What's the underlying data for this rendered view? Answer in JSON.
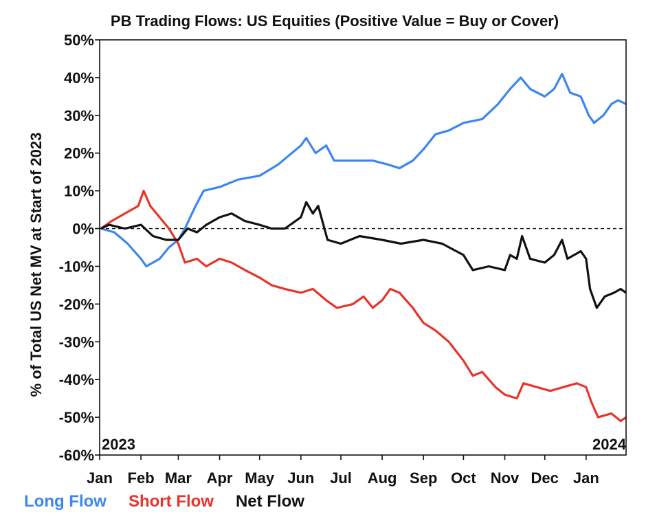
{
  "chart_data": {
    "type": "line",
    "title": "PB Trading Flows: US Equities (Positive Value = Buy or Cover)",
    "ylabel": "% of Total US Net MV at Start of 2023",
    "xlabel": "",
    "ylim": [
      -60,
      50
    ],
    "y_ticks": [
      "50%",
      "40%",
      "30%",
      "20%",
      "10%",
      "0%",
      "-10%",
      "-20%",
      "-30%",
      "-40%",
      "-50%",
      "-60%"
    ],
    "y_tick_values": [
      50,
      40,
      30,
      20,
      10,
      0,
      -10,
      -20,
      -30,
      -40,
      -50,
      -60
    ],
    "x_ticks": [
      "Jan",
      "Feb",
      "Mar",
      "Apr",
      "May",
      "Jun",
      "Jul",
      "Aug",
      "Sep",
      "Oct",
      "Nov",
      "Dec",
      "Jan"
    ],
    "x_range": [
      "2023-01-01",
      "2024-01-31"
    ],
    "year_labels": {
      "start": "2023",
      "end": "2024"
    },
    "zero_line": "dashed",
    "legend_position": "bottom-left",
    "series": [
      {
        "name": "Long Flow",
        "color": "#3b86f0",
        "points": [
          [
            "2023-01-02",
            0
          ],
          [
            "2023-01-12",
            -1
          ],
          [
            "2023-01-22",
            -4
          ],
          [
            "2023-02-01",
            -8
          ],
          [
            "2023-02-05",
            -10
          ],
          [
            "2023-02-15",
            -8
          ],
          [
            "2023-02-22",
            -5
          ],
          [
            "2023-03-01",
            -3
          ],
          [
            "2023-03-06",
            0
          ],
          [
            "2023-03-14",
            6
          ],
          [
            "2023-03-20",
            10
          ],
          [
            "2023-04-01",
            11
          ],
          [
            "2023-04-15",
            13
          ],
          [
            "2023-05-01",
            14
          ],
          [
            "2023-05-15",
            17
          ],
          [
            "2023-06-01",
            22
          ],
          [
            "2023-06-05",
            24
          ],
          [
            "2023-06-12",
            20
          ],
          [
            "2023-06-20",
            22
          ],
          [
            "2023-06-26",
            18
          ],
          [
            "2023-07-10",
            18
          ],
          [
            "2023-07-25",
            18
          ],
          [
            "2023-08-05",
            17
          ],
          [
            "2023-08-14",
            16
          ],
          [
            "2023-08-24",
            18
          ],
          [
            "2023-09-01",
            21
          ],
          [
            "2023-09-10",
            25
          ],
          [
            "2023-09-20",
            26
          ],
          [
            "2023-10-01",
            28
          ],
          [
            "2023-10-15",
            29
          ],
          [
            "2023-10-27",
            33
          ],
          [
            "2023-11-05",
            37
          ],
          [
            "2023-11-13",
            40
          ],
          [
            "2023-11-20",
            37
          ],
          [
            "2023-12-01",
            35
          ],
          [
            "2023-12-08",
            37
          ],
          [
            "2023-12-14",
            41
          ],
          [
            "2023-12-20",
            36
          ],
          [
            "2023-12-28",
            35
          ],
          [
            "2024-01-03",
            30
          ],
          [
            "2024-01-07",
            28
          ],
          [
            "2024-01-14",
            30
          ],
          [
            "2024-01-20",
            33
          ],
          [
            "2024-01-25",
            34
          ],
          [
            "2024-01-31",
            33
          ]
        ]
      },
      {
        "name": "Short Flow",
        "color": "#e8342a",
        "points": [
          [
            "2023-01-02",
            0
          ],
          [
            "2023-01-10",
            2
          ],
          [
            "2023-01-20",
            4
          ],
          [
            "2023-01-30",
            6
          ],
          [
            "2023-02-03",
            10
          ],
          [
            "2023-02-08",
            6
          ],
          [
            "2023-02-15",
            3
          ],
          [
            "2023-02-22",
            0
          ],
          [
            "2023-03-01",
            -4
          ],
          [
            "2023-03-06",
            -9
          ],
          [
            "2023-03-15",
            -8
          ],
          [
            "2023-03-22",
            -10
          ],
          [
            "2023-04-01",
            -8
          ],
          [
            "2023-04-10",
            -9
          ],
          [
            "2023-04-20",
            -11
          ],
          [
            "2023-05-01",
            -13
          ],
          [
            "2023-05-10",
            -15
          ],
          [
            "2023-05-20",
            -16
          ],
          [
            "2023-06-01",
            -17
          ],
          [
            "2023-06-10",
            -16
          ],
          [
            "2023-06-20",
            -19
          ],
          [
            "2023-06-28",
            -21
          ],
          [
            "2023-07-10",
            -20
          ],
          [
            "2023-07-18",
            -18
          ],
          [
            "2023-07-25",
            -21
          ],
          [
            "2023-08-01",
            -19
          ],
          [
            "2023-08-07",
            -16
          ],
          [
            "2023-08-14",
            -17
          ],
          [
            "2023-08-24",
            -21
          ],
          [
            "2023-09-01",
            -25
          ],
          [
            "2023-09-10",
            -27
          ],
          [
            "2023-09-20",
            -30
          ],
          [
            "2023-10-01",
            -35
          ],
          [
            "2023-10-08",
            -39
          ],
          [
            "2023-10-15",
            -38
          ],
          [
            "2023-10-25",
            -42
          ],
          [
            "2023-11-01",
            -44
          ],
          [
            "2023-11-10",
            -45
          ],
          [
            "2023-11-15",
            -41
          ],
          [
            "2023-11-25",
            -42
          ],
          [
            "2023-12-05",
            -43
          ],
          [
            "2023-12-15",
            -42
          ],
          [
            "2023-12-25",
            -41
          ],
          [
            "2024-01-01",
            -42
          ],
          [
            "2024-01-05",
            -46
          ],
          [
            "2024-01-10",
            -50
          ],
          [
            "2024-01-20",
            -49
          ],
          [
            "2024-01-27",
            -51
          ],
          [
            "2024-01-31",
            -50
          ]
        ]
      },
      {
        "name": "Net Flow",
        "color": "#111111",
        "points": [
          [
            "2023-01-02",
            0
          ],
          [
            "2023-01-08",
            1
          ],
          [
            "2023-01-20",
            0
          ],
          [
            "2023-02-01",
            1
          ],
          [
            "2023-02-10",
            -2
          ],
          [
            "2023-02-20",
            -3
          ],
          [
            "2023-03-01",
            -3
          ],
          [
            "2023-03-08",
            0
          ],
          [
            "2023-03-15",
            -1
          ],
          [
            "2023-03-22",
            1
          ],
          [
            "2023-04-01",
            3
          ],
          [
            "2023-04-10",
            4
          ],
          [
            "2023-04-20",
            2
          ],
          [
            "2023-05-01",
            1
          ],
          [
            "2023-05-10",
            0
          ],
          [
            "2023-05-20",
            0
          ],
          [
            "2023-06-01",
            3
          ],
          [
            "2023-06-05",
            7
          ],
          [
            "2023-06-10",
            4
          ],
          [
            "2023-06-14",
            6
          ],
          [
            "2023-06-21",
            -3
          ],
          [
            "2023-07-01",
            -4
          ],
          [
            "2023-07-15",
            -2
          ],
          [
            "2023-08-01",
            -3
          ],
          [
            "2023-08-15",
            -4
          ],
          [
            "2023-09-01",
            -3
          ],
          [
            "2023-09-15",
            -4
          ],
          [
            "2023-10-01",
            -7
          ],
          [
            "2023-10-08",
            -11
          ],
          [
            "2023-10-20",
            -10
          ],
          [
            "2023-11-01",
            -11
          ],
          [
            "2023-11-05",
            -7
          ],
          [
            "2023-11-10",
            -8
          ],
          [
            "2023-11-14",
            -2
          ],
          [
            "2023-11-20",
            -8
          ],
          [
            "2023-12-01",
            -9
          ],
          [
            "2023-12-08",
            -7
          ],
          [
            "2023-12-14",
            -3
          ],
          [
            "2023-12-18",
            -8
          ],
          [
            "2023-12-28",
            -6
          ],
          [
            "2024-01-01",
            -8
          ],
          [
            "2024-01-04",
            -16
          ],
          [
            "2024-01-09",
            -21
          ],
          [
            "2024-01-15",
            -18
          ],
          [
            "2024-01-22",
            -17
          ],
          [
            "2024-01-27",
            -16
          ],
          [
            "2024-01-31",
            -17
          ]
        ]
      }
    ]
  }
}
